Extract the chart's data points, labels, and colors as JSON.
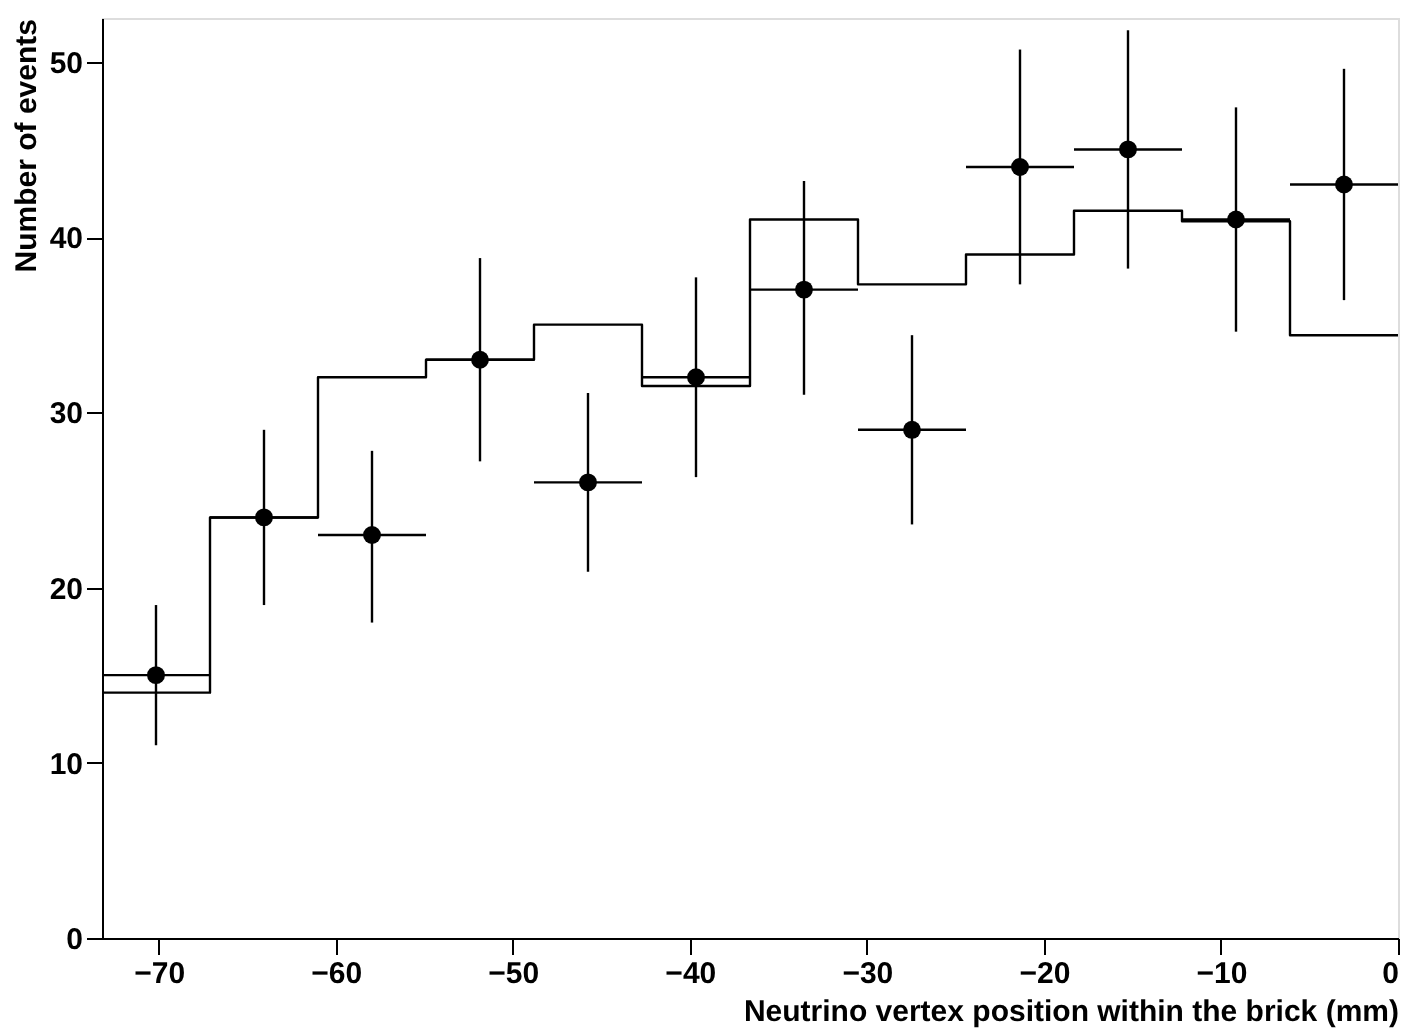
{
  "chart_data": {
    "type": "histogram",
    "xlabel": "Neutrino vertex position within the brick (mm)",
    "ylabel": "Number of events",
    "xlim": [
      -73.2,
      0
    ],
    "ylim": [
      0,
      52.5
    ],
    "xticks": [
      -70,
      -60,
      -50,
      -40,
      -30,
      -20,
      -10,
      0
    ],
    "yticks": [
      0,
      10,
      20,
      30,
      40,
      50
    ],
    "series": [
      {
        "color": "#000000",
        "bins": [
          -73.2,
          -67.1,
          -61,
          -54.9,
          -48.8,
          -42.7,
          -36.6,
          -30.5,
          -24.4,
          -18.3,
          -12.2,
          -6.1,
          0
        ],
        "values": [
          14,
          24,
          32,
          33,
          35,
          31.5,
          41,
          37.3,
          39,
          41.5,
          40.9,
          34.4
        ]
      },
      {
        "type": "scatter",
        "color": "#000000",
        "marker": "circle",
        "x": [
          -70.15,
          -64.05,
          -57.95,
          -51.85,
          -45.75,
          -39.65,
          -33.55,
          -27.45,
          -21.35,
          -15.25,
          -9.15,
          -3.05
        ],
        "values": [
          15,
          24,
          23,
          33,
          26,
          32,
          37,
          29,
          44,
          45,
          41,
          43
        ],
        "errors": [
          [
            11,
            19
          ],
          [
            19,
            29
          ],
          [
            18,
            27.8
          ],
          [
            27.2,
            38.8
          ],
          [
            20.9,
            31.1
          ],
          [
            26.3,
            37.7
          ],
          [
            31,
            43.2
          ],
          [
            23.6,
            34.4
          ],
          [
            37.3,
            50.7
          ],
          [
            38.2,
            51.8
          ],
          [
            34.6,
            47.4
          ],
          [
            36.4,
            49.6
          ]
        ],
        "xerrors": [
          3.05,
          3.05,
          3.05,
          3.05,
          3.05,
          3.05,
          3.05,
          3.05,
          3.05,
          3.05,
          3.05,
          3.05
        ]
      }
    ]
  }
}
